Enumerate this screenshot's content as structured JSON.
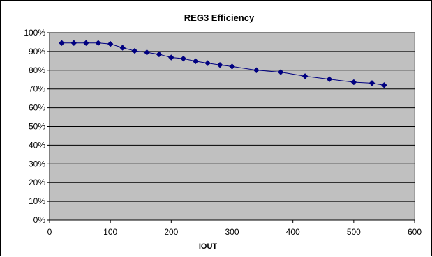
{
  "chart_data": {
    "type": "line",
    "title": "REG3 Efficiency",
    "xlabel": "IOUT",
    "ylabel": "",
    "xlim": [
      0,
      600
    ],
    "ylim": [
      0,
      100
    ],
    "x_ticks": [
      "0",
      "100",
      "200",
      "300",
      "400",
      "500",
      "600"
    ],
    "y_ticks": [
      "0%",
      "10%",
      "20%",
      "30%",
      "40%",
      "50%",
      "60%",
      "70%",
      "80%",
      "90%",
      "100%"
    ],
    "grid": "horizontal",
    "legend": "none",
    "colors": {
      "series": "#000080",
      "plot_background": "#c0c0c0",
      "gridline": "#000000"
    },
    "series": [
      {
        "marker": "diamond",
        "x": [
          20,
          40,
          60,
          80,
          100,
          120,
          140,
          160,
          180,
          200,
          220,
          240,
          260,
          280,
          300,
          340,
          380,
          420,
          460,
          500,
          530,
          550
        ],
        "values": [
          94.5,
          94.5,
          94.5,
          94.5,
          94.0,
          92.0,
          90.3,
          89.5,
          88.5,
          86.8,
          86.2,
          84.8,
          83.8,
          82.8,
          82.0,
          80.0,
          79.0,
          76.8,
          75.2,
          73.6,
          73.1,
          72.0
        ]
      }
    ]
  }
}
